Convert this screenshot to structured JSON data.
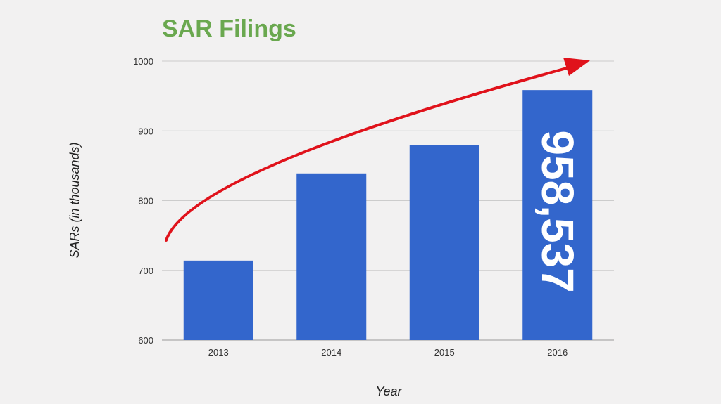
{
  "chart_data": {
    "type": "bar",
    "title": "SAR Filings",
    "xlabel": "Year",
    "ylabel": "SARs (in thousands)",
    "categories": [
      "2013",
      "2014",
      "2015",
      "2016"
    ],
    "values": [
      714,
      839,
      880,
      958.537
    ],
    "ylim": [
      600,
      1000
    ],
    "yticks": [
      600,
      700,
      800,
      900,
      1000
    ],
    "grid": true,
    "legend": "none",
    "bar_color": "#3366cc",
    "trend_arrow_color": "#e0121b",
    "data_labels": [
      {
        "category": "2016",
        "text": "958,537"
      }
    ]
  }
}
